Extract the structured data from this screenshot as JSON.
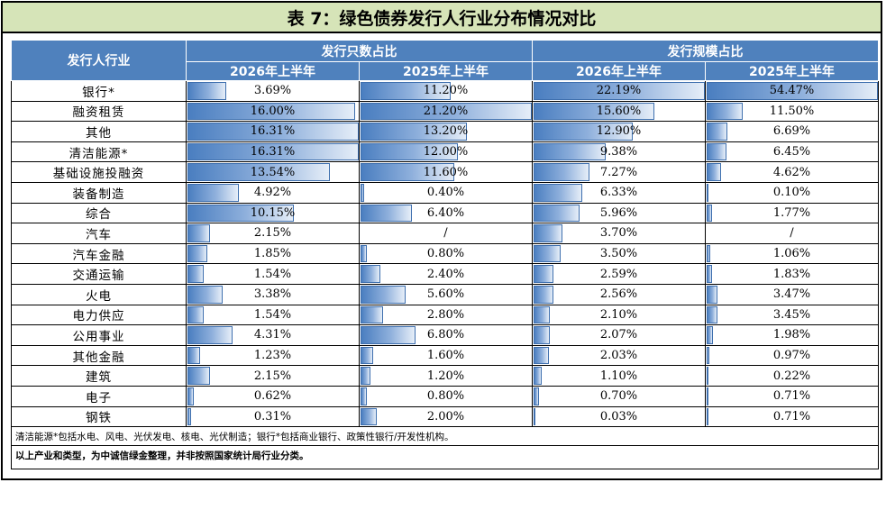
{
  "title": "表 7：绿色债券发行人行业分布情况对比",
  "header": {
    "industry": "发行人行业",
    "group_count": "发行只数占比",
    "group_scale": "发行规模占比",
    "periods": [
      "2026年上半年",
      "2025年上半年",
      "2026年上半年",
      "2025年上半年"
    ]
  },
  "rows": [
    {
      "name": "银行*",
      "cells": [
        {
          "text": "3.69%",
          "v": 3.69
        },
        {
          "text": "11.20%",
          "v": 11.2
        },
        {
          "text": "22.19%",
          "v": 22.19
        },
        {
          "text": "54.47%",
          "v": 54.47
        }
      ]
    },
    {
      "name": "融资租赁",
      "cells": [
        {
          "text": "16.00%",
          "v": 16.0
        },
        {
          "text": "21.20%",
          "v": 21.2
        },
        {
          "text": "15.60%",
          "v": 15.6
        },
        {
          "text": "11.50%",
          "v": 11.5
        }
      ]
    },
    {
      "name": "其他",
      "cells": [
        {
          "text": "16.31%",
          "v": 16.31
        },
        {
          "text": "13.20%",
          "v": 13.2
        },
        {
          "text": "12.90%",
          "v": 12.9
        },
        {
          "text": "6.69%",
          "v": 6.69
        }
      ]
    },
    {
      "name": "清洁能源*",
      "cells": [
        {
          "text": "16.31%",
          "v": 16.31
        },
        {
          "text": "12.00%",
          "v": 12.0
        },
        {
          "text": "9.38%",
          "v": 9.38
        },
        {
          "text": "6.45%",
          "v": 6.45
        }
      ]
    },
    {
      "name": "基础设施投融资",
      "cells": [
        {
          "text": "13.54%",
          "v": 13.54
        },
        {
          "text": "11.60%",
          "v": 11.6
        },
        {
          "text": "7.27%",
          "v": 7.27
        },
        {
          "text": "4.62%",
          "v": 4.62
        }
      ]
    },
    {
      "name": "装备制造",
      "cells": [
        {
          "text": "4.92%",
          "v": 4.92
        },
        {
          "text": "0.40%",
          "v": 0.4
        },
        {
          "text": "6.33%",
          "v": 6.33
        },
        {
          "text": "0.10%",
          "v": 0.1
        }
      ]
    },
    {
      "name": "综合",
      "cells": [
        {
          "text": "10.15%",
          "v": 10.15
        },
        {
          "text": "6.40%",
          "v": 6.4
        },
        {
          "text": "5.96%",
          "v": 5.96
        },
        {
          "text": "1.77%",
          "v": 1.77
        }
      ]
    },
    {
      "name": "汽车",
      "cells": [
        {
          "text": "2.15%",
          "v": 2.15
        },
        {
          "text": "/",
          "v": 0
        },
        {
          "text": "3.70%",
          "v": 3.7
        },
        {
          "text": "/",
          "v": 0
        }
      ]
    },
    {
      "name": "汽车金融",
      "cells": [
        {
          "text": "1.85%",
          "v": 1.85
        },
        {
          "text": "0.80%",
          "v": 0.8
        },
        {
          "text": "3.50%",
          "v": 3.5
        },
        {
          "text": "1.06%",
          "v": 1.06
        }
      ]
    },
    {
      "name": "交通运输",
      "cells": [
        {
          "text": "1.54%",
          "v": 1.54
        },
        {
          "text": "2.40%",
          "v": 2.4
        },
        {
          "text": "2.59%",
          "v": 2.59
        },
        {
          "text": "1.83%",
          "v": 1.83
        }
      ]
    },
    {
      "name": "火电",
      "cells": [
        {
          "text": "3.38%",
          "v": 3.38
        },
        {
          "text": "5.60%",
          "v": 5.6
        },
        {
          "text": "2.56%",
          "v": 2.56
        },
        {
          "text": "3.47%",
          "v": 3.47
        }
      ]
    },
    {
      "name": "电力供应",
      "cells": [
        {
          "text": "1.54%",
          "v": 1.54
        },
        {
          "text": "2.80%",
          "v": 2.8
        },
        {
          "text": "2.10%",
          "v": 2.1
        },
        {
          "text": "3.45%",
          "v": 3.45
        }
      ]
    },
    {
      "name": "公用事业",
      "cells": [
        {
          "text": "4.31%",
          "v": 4.31
        },
        {
          "text": "6.80%",
          "v": 6.8
        },
        {
          "text": "2.07%",
          "v": 2.07
        },
        {
          "text": "1.98%",
          "v": 1.98
        }
      ]
    },
    {
      "name": "其他金融",
      "cells": [
        {
          "text": "1.23%",
          "v": 1.23
        },
        {
          "text": "1.60%",
          "v": 1.6
        },
        {
          "text": "2.03%",
          "v": 2.03
        },
        {
          "text": "0.97%",
          "v": 0.97
        }
      ]
    },
    {
      "name": "建筑",
      "cells": [
        {
          "text": "2.15%",
          "v": 2.15
        },
        {
          "text": "1.20%",
          "v": 1.2
        },
        {
          "text": "1.10%",
          "v": 1.1
        },
        {
          "text": "0.22%",
          "v": 0.22
        }
      ]
    },
    {
      "name": "电子",
      "cells": [
        {
          "text": "0.62%",
          "v": 0.62
        },
        {
          "text": "0.80%",
          "v": 0.8
        },
        {
          "text": "0.70%",
          "v": 0.7
        },
        {
          "text": "0.71%",
          "v": 0.71
        }
      ]
    },
    {
      "name": "钢铁",
      "cells": [
        {
          "text": "0.31%",
          "v": 0.31
        },
        {
          "text": "2.00%",
          "v": 2.0
        },
        {
          "text": "0.03%",
          "v": 0.03
        },
        {
          "text": "0.71%",
          "v": 0.71
        }
      ]
    }
  ],
  "column_max": [
    16.31,
    21.2,
    22.19,
    54.47
  ],
  "note1": "清洁能源*包括水电、风电、光伏发电、核电、光伏制造；银行*包括商业银行、政策性银行/开发性机构。",
  "note2": "以上产业和类型，为中诚信绿金整理，并非按照国家统计局行业分类。",
  "colors": {
    "header_bg": "#4f81bd",
    "title_bg": "#d6e4b8",
    "bar": "#4a7ec0"
  }
}
